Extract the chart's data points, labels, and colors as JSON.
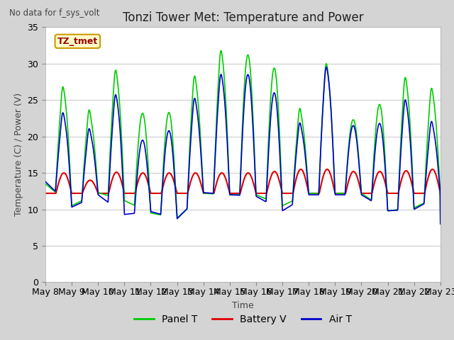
{
  "title": "Tonzi Tower Met: Temperature and Power",
  "top_left_text": "No data for f_sys_volt",
  "ylabel": "Temperature (C) / Power (V)",
  "xlabel": "Time",
  "ylim": [
    0,
    35
  ],
  "yticks": [
    0,
    5,
    10,
    15,
    20,
    25,
    30,
    35
  ],
  "x_tick_labels": [
    "May 8",
    "May 9",
    "May 10",
    "May 11",
    "May 12",
    "May 13",
    "May 14",
    "May 15",
    "May 16",
    "May 17",
    "May 18",
    "May 19",
    "May 20",
    "May 21",
    "May 22",
    "May 23"
  ],
  "legend_entries": [
    "Panel T",
    "Battery V",
    "Air T"
  ],
  "panel_t_color": "#00cc00",
  "battery_v_color": "#dd0000",
  "air_t_color": "#0000cc",
  "fig_bg_color": "#d4d4d4",
  "plot_bg_color": "#ffffff",
  "annotation_text": "TZ_tmet",
  "annotation_bg": "#ffffcc",
  "annotation_border": "#cc9900",
  "annotation_text_color": "#990000",
  "title_fontsize": 12,
  "label_fontsize": 9,
  "tick_fontsize": 9,
  "legend_fontsize": 10
}
